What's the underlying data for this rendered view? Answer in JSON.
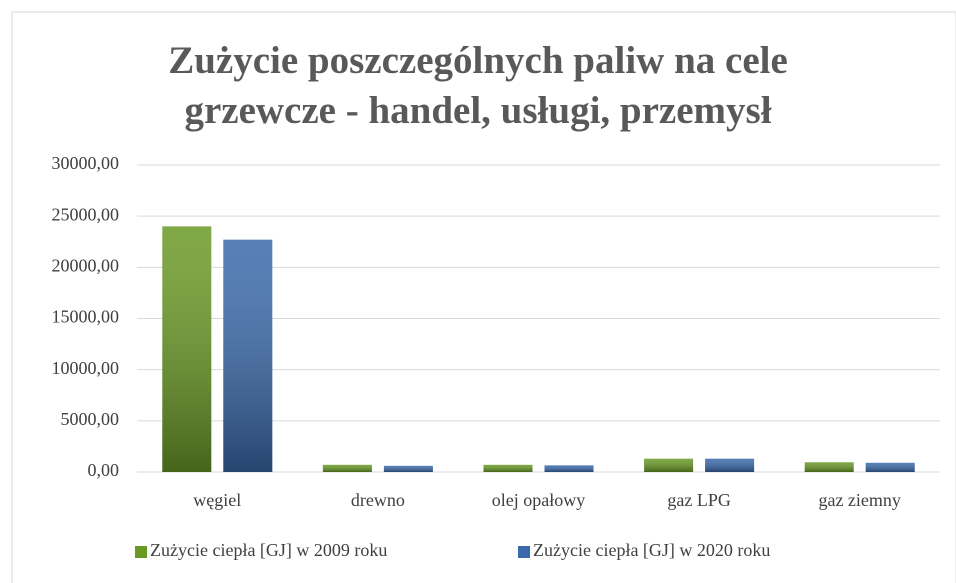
{
  "chart_data": {
    "type": "bar",
    "title": "Zużycie poszczególnych paliw na cele grzewcze - handel, usługi, przemysł",
    "categories": [
      "węgiel",
      "drewno",
      "olej opałowy",
      "gaz LPG",
      "gaz ziemny"
    ],
    "series": [
      {
        "name": "Zużycie ciepła [GJ] w 2009 roku",
        "color": "#6a9a26",
        "values": [
          24000,
          700,
          700,
          1300,
          950
        ]
      },
      {
        "name": "Zużycie ciepła [GJ] w 2020 roku",
        "color": "#3a6aab",
        "values": [
          22700,
          600,
          650,
          1300,
          900
        ]
      }
    ],
    "ylim": [
      0,
      30000
    ],
    "yticks": [
      {
        "value": 0,
        "label": "0,00"
      },
      {
        "value": 5000,
        "label": "5000,00"
      },
      {
        "value": 10000,
        "label": "10000,00"
      },
      {
        "value": 15000,
        "label": "15000,00"
      },
      {
        "value": 20000,
        "label": "20000,00"
      },
      {
        "value": 25000,
        "label": "25000,00"
      },
      {
        "value": 30000,
        "label": "30000,00"
      }
    ],
    "grid": true,
    "legend": "bottom"
  }
}
